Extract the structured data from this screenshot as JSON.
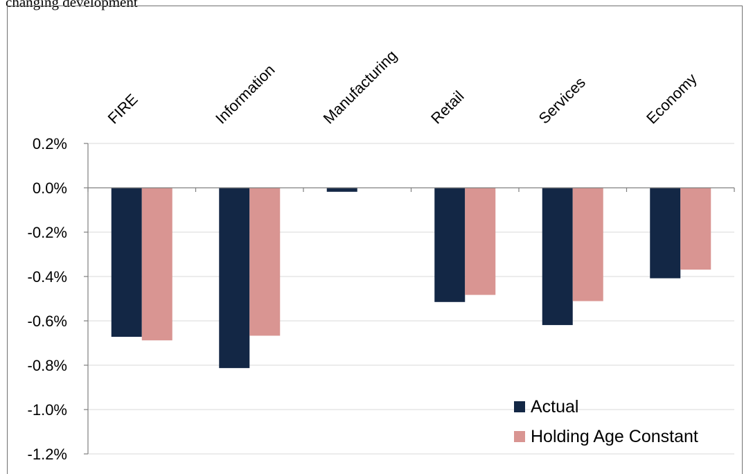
{
  "caption": "changing development",
  "colors": {
    "actual": "#132745",
    "holding": "#d99592",
    "grid": "#d9d9d9",
    "axis": "#7f7f7f"
  },
  "chart_data": {
    "type": "bar",
    "title": "",
    "xlabel": "",
    "ylabel": "",
    "categories": [
      "FIRE",
      "Information",
      "Manufacturing",
      "Retail",
      "Services",
      "Economy"
    ],
    "series": [
      {
        "name": "Actual",
        "values": [
          -0.672,
          -0.813,
          -0.018,
          -0.515,
          -0.619,
          -0.408
        ]
      },
      {
        "name": "Holding Age Constant",
        "values": [
          -0.688,
          -0.667,
          0.0,
          -0.483,
          -0.511,
          -0.369
        ]
      }
    ],
    "ylim": [
      -1.2,
      0.2
    ],
    "yticks": [
      "0.2%",
      "0.0%",
      "-0.2%",
      "-0.4%",
      "-0.6%",
      "-0.8%",
      "-1.0%",
      "-1.2%"
    ],
    "grid": true,
    "legend_position": "bottom-right"
  }
}
